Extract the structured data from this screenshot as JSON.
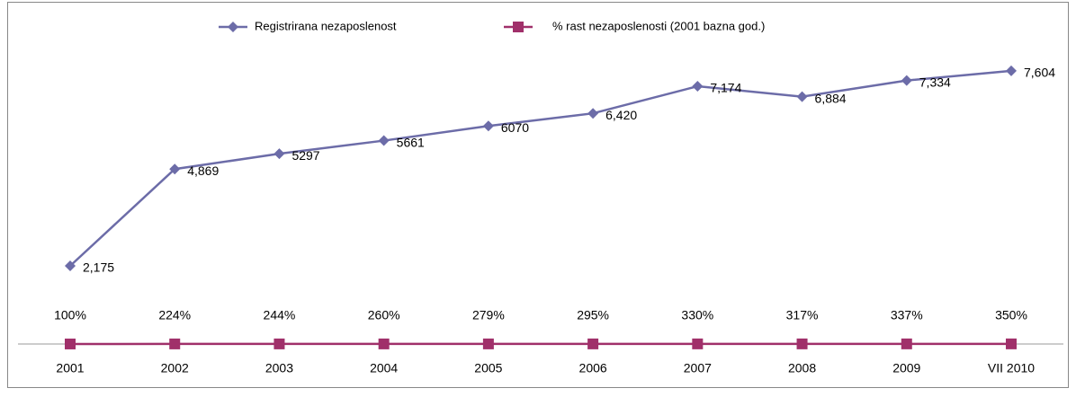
{
  "chart_data": {
    "type": "line",
    "categories": [
      "2001",
      "2002",
      "2003",
      "2004",
      "2005",
      "2006",
      "2007",
      "2008",
      "2009",
      "VII 2010"
    ],
    "series": [
      {
        "name": "Registrirana nezaposlenost",
        "color": "#6c6ca8",
        "marker": "diamond",
        "values": [
          2175,
          4869,
          5297,
          5661,
          6070,
          6420,
          7174,
          6884,
          7334,
          7604
        ],
        "value_labels": [
          "2,175",
          "4,869",
          "5297",
          "5661",
          "6070",
          "6,420",
          "7,174",
          "6,884",
          "7,334",
          "7,604"
        ]
      },
      {
        "name": "% rast nezaposlenosti (2001 bazna god.)",
        "color": "#a0306a",
        "marker": "square",
        "values": [
          1.0,
          2.24,
          2.44,
          2.6,
          2.79,
          2.95,
          3.3,
          3.17,
          3.37,
          3.5
        ],
        "value_labels": [
          "100%",
          "224%",
          "244%",
          "260%",
          "279%",
          "295%",
          "330%",
          "317%",
          "337%",
          "350%"
        ]
      }
    ],
    "ylim": [
      0,
      8000
    ],
    "legend": "top"
  }
}
